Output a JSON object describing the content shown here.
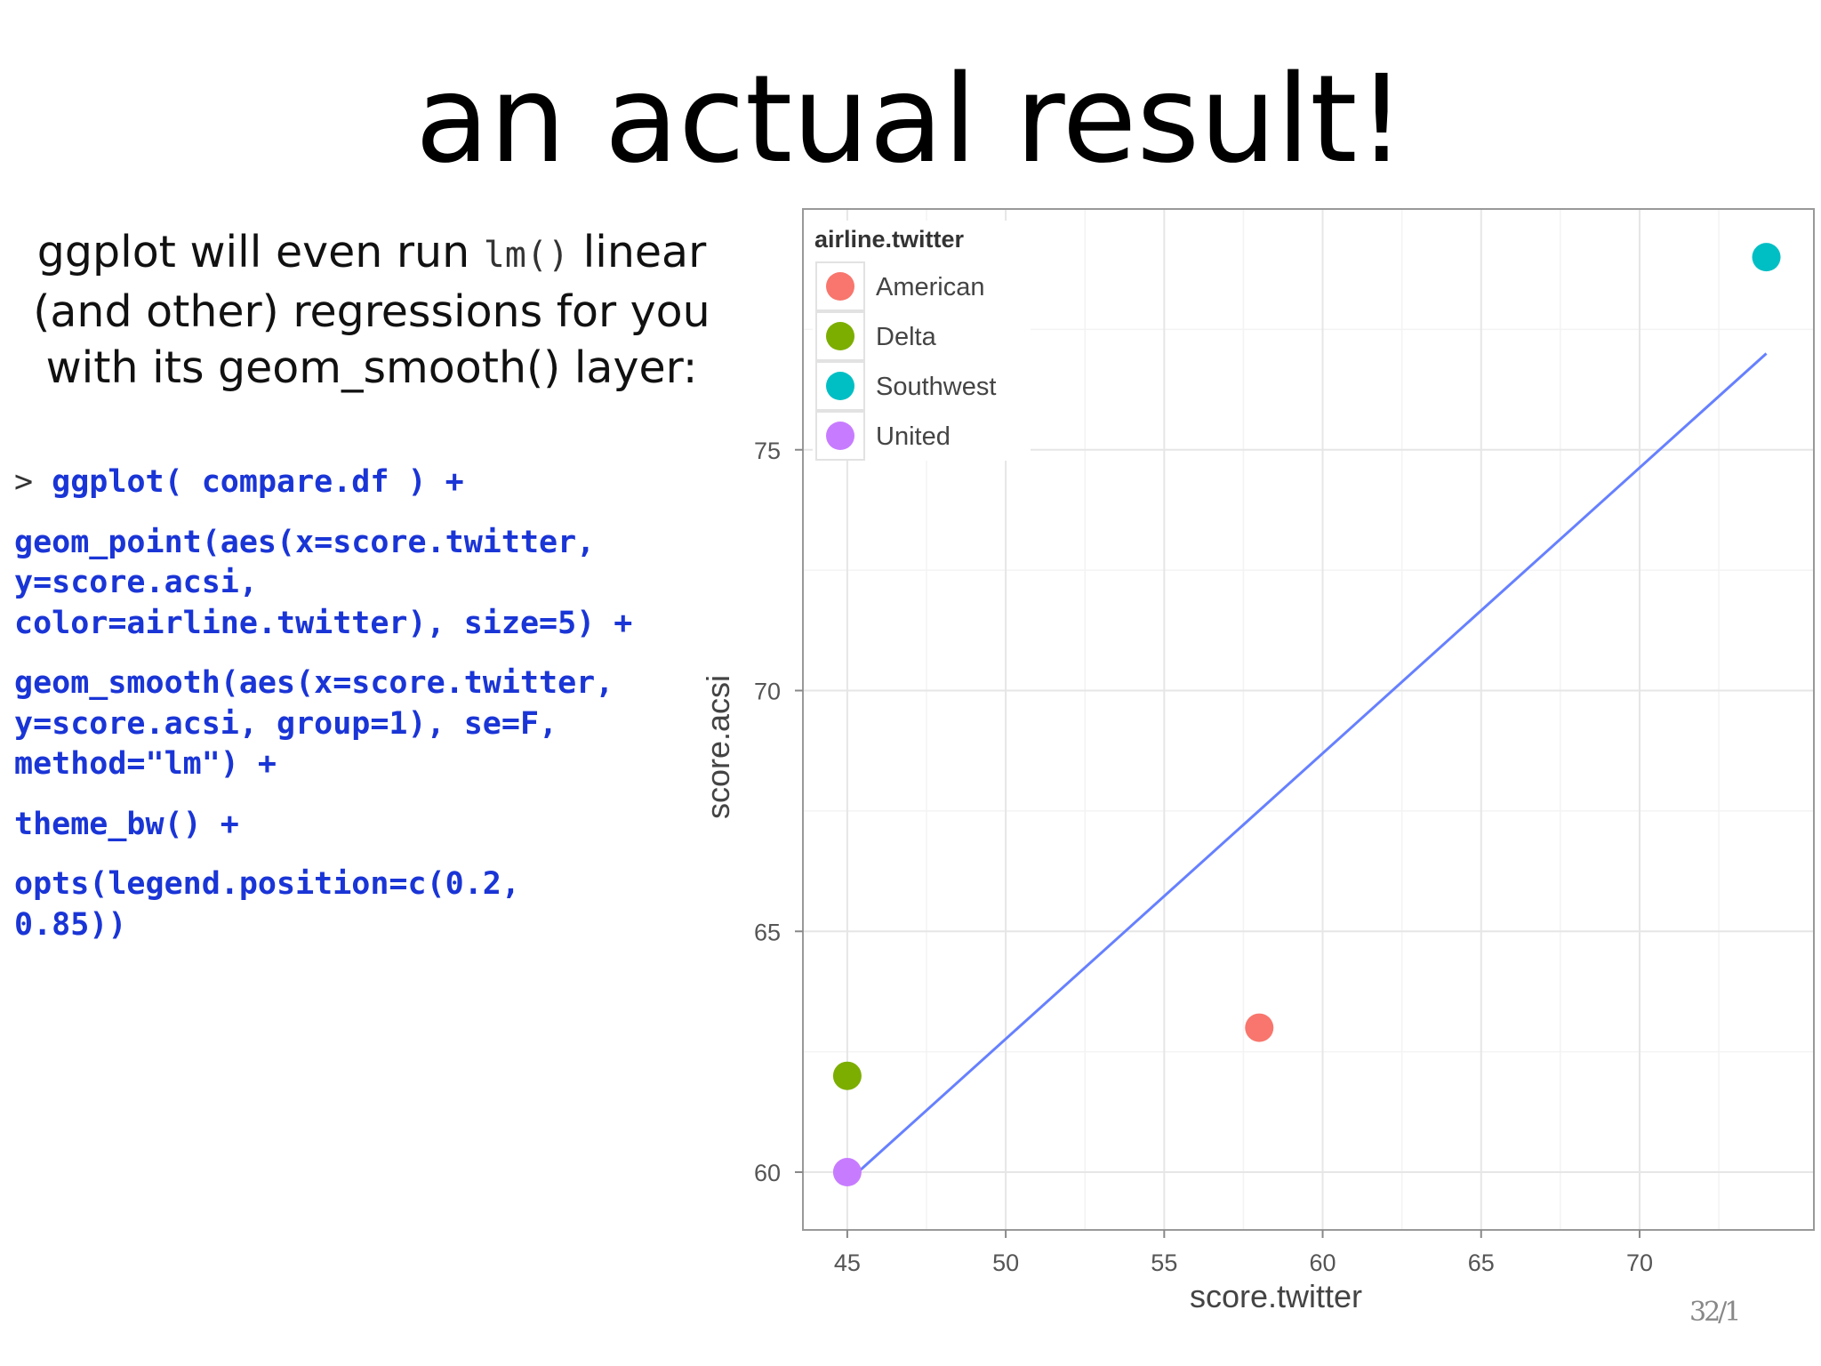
{
  "slide": {
    "title": "an actual result!",
    "intro_before": "ggplot will even run ",
    "intro_code": "lm()",
    "intro_after": " linear (and other) regressions for you with its geom_smooth() layer:",
    "code": {
      "prompt": "> ",
      "lines": [
        "ggplot( compare.df ) +",
        "geom_point(aes(x=score.twitter,",
        "y=score.acsi,",
        "color=airline.twitter), size=5) +",
        "geom_smooth(aes(x=score.twitter,",
        "y=score.acsi, group=1), se=F,",
        "method=\"lm\") +",
        "theme_bw() +",
        "opts(legend.position=c(0.2,",
        "0.85))"
      ]
    },
    "page_number": "32/1"
  },
  "chart_data": {
    "type": "scatter",
    "xlabel": "score.twitter",
    "ylabel": "score.acsi",
    "xlim": [
      43.6,
      75.5
    ],
    "ylim": [
      58.8,
      80.0
    ],
    "x_ticks": [
      45,
      50,
      55,
      60,
      65,
      70
    ],
    "y_ticks": [
      60,
      65,
      70,
      75
    ],
    "grid": true,
    "legend_title": "airline.twitter",
    "legend_position": "top-left",
    "series": [
      {
        "name": "American",
        "color": "#f8766d",
        "points": [
          [
            58,
            63
          ]
        ]
      },
      {
        "name": "Delta",
        "color": "#7cae00",
        "points": [
          [
            45,
            62
          ]
        ]
      },
      {
        "name": "Southwest",
        "color": "#00bfc4",
        "points": [
          [
            74,
            79
          ]
        ]
      },
      {
        "name": "United",
        "color": "#c77cff",
        "points": [
          [
            45,
            60
          ]
        ]
      }
    ],
    "fit_line": {
      "method": "lm",
      "color": "#6680ff",
      "x": [
        45,
        74
      ],
      "y": [
        59.8,
        77
      ]
    }
  }
}
